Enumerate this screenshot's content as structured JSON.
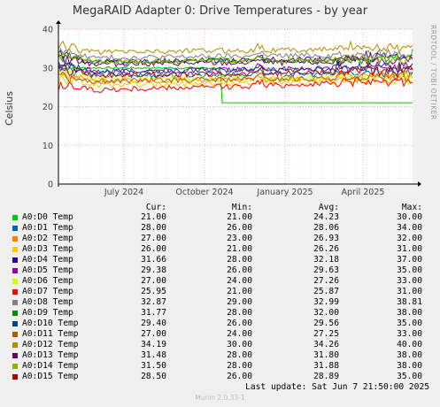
{
  "title": "MegaRAID Adapter 0: Drive Temperatures - by year",
  "side_text": "RRDTOOL / TOBI OETIKER",
  "legend_headers": {
    "cur": "Cur:",
    "min": "Min:",
    "avg": "Avg:",
    "max": "Max:"
  },
  "last_update": "Last update:  Sat Jun  7 21:50:00 2025",
  "munin_version": "Munin 2.0.33-1",
  "chart_data": {
    "type": "line",
    "title": "MegaRAID Adapter 0: Drive Temperatures - by year",
    "ylabel": "Celsius",
    "xlabel": "",
    "ylim": [
      0,
      40
    ],
    "yticks": [
      0,
      10,
      20,
      30,
      40
    ],
    "xticks": [
      "July 2024",
      "October 2024",
      "January 2025",
      "April 2025"
    ],
    "grid": true,
    "legend_placement": "bottom",
    "series": [
      {
        "name": "A0:D0 Temp",
        "color": "#00cc00",
        "cur": "21.00",
        "min": "21.00",
        "avg": "24.23",
        "max": "30.00",
        "approx_level_start": 30.0,
        "approx_level_end": 21.0
      },
      {
        "name": "A0:D1 Temp",
        "color": "#0066b3",
        "cur": "28.00",
        "min": "26.00",
        "avg": "28.06",
        "max": "34.00",
        "approx_level_start": 28.0,
        "approx_level_end": 28.5
      },
      {
        "name": "A0:D2 Temp",
        "color": "#ff8000",
        "cur": "27.00",
        "min": "23.00",
        "avg": "26.93",
        "max": "32.00",
        "approx_level_start": 26.5,
        "approx_level_end": 27.5
      },
      {
        "name": "A0:D3 Temp",
        "color": "#ffcc00",
        "cur": "26.00",
        "min": "21.00",
        "avg": "26.26",
        "max": "31.00",
        "approx_level_start": 25.5,
        "approx_level_end": 26.5
      },
      {
        "name": "A0:D4 Temp",
        "color": "#330099",
        "cur": "31.66",
        "min": "28.00",
        "avg": "32.18",
        "max": "37.00",
        "approx_level_start": 31.5,
        "approx_level_end": 32.5
      },
      {
        "name": "A0:D5 Temp",
        "color": "#990099",
        "cur": "29.38",
        "min": "26.00",
        "avg": "29.63",
        "max": "35.00",
        "approx_level_start": 29.0,
        "approx_level_end": 30.0
      },
      {
        "name": "A0:D6 Temp",
        "color": "#ccff00",
        "cur": "27.00",
        "min": "24.00",
        "avg": "27.26",
        "max": "33.00",
        "approx_level_start": 27.0,
        "approx_level_end": 27.5
      },
      {
        "name": "A0:D7 Temp",
        "color": "#ff0000",
        "cur": "25.95",
        "min": "21.00",
        "avg": "25.87",
        "max": "31.00",
        "approx_level_start": 24.0,
        "approx_level_end": 26.5
      },
      {
        "name": "A0:D8 Temp",
        "color": "#808080",
        "cur": "32.87",
        "min": "29.00",
        "avg": "32.99",
        "max": "38.81",
        "approx_level_start": 32.5,
        "approx_level_end": 33.5
      },
      {
        "name": "A0:D9 Temp",
        "color": "#008f00",
        "cur": "31.77",
        "min": "28.00",
        "avg": "32.00",
        "max": "38.00",
        "approx_level_start": 31.5,
        "approx_level_end": 32.0
      },
      {
        "name": "A0:D10 Temp",
        "color": "#00487d",
        "cur": "29.40",
        "min": "26.00",
        "avg": "29.56",
        "max": "35.00",
        "approx_level_start": 29.0,
        "approx_level_end": 30.0
      },
      {
        "name": "A0:D11 Temp",
        "color": "#b35a00",
        "cur": "27.00",
        "min": "24.00",
        "avg": "27.25",
        "max": "33.00",
        "approx_level_start": 26.5,
        "approx_level_end": 27.5
      },
      {
        "name": "A0:D12 Temp",
        "color": "#b38f00",
        "cur": "34.19",
        "min": "30.00",
        "avg": "34.26",
        "max": "40.00",
        "approx_level_start": 34.0,
        "approx_level_end": 35.0
      },
      {
        "name": "A0:D13 Temp",
        "color": "#6b006b",
        "cur": "31.48",
        "min": "28.00",
        "avg": "31.80",
        "max": "38.00",
        "approx_level_start": 31.0,
        "approx_level_end": 31.5
      },
      {
        "name": "A0:D14 Temp",
        "color": "#8fb300",
        "cur": "31.50",
        "min": "28.00",
        "avg": "31.88",
        "max": "38.00",
        "approx_level_start": 31.5,
        "approx_level_end": 32.0
      },
      {
        "name": "A0:D15 Temp",
        "color": "#b30000",
        "cur": "28.50",
        "min": "26.00",
        "avg": "28.89",
        "max": "35.00",
        "approx_level_start": 28.0,
        "approx_level_end": 29.0
      }
    ]
  }
}
